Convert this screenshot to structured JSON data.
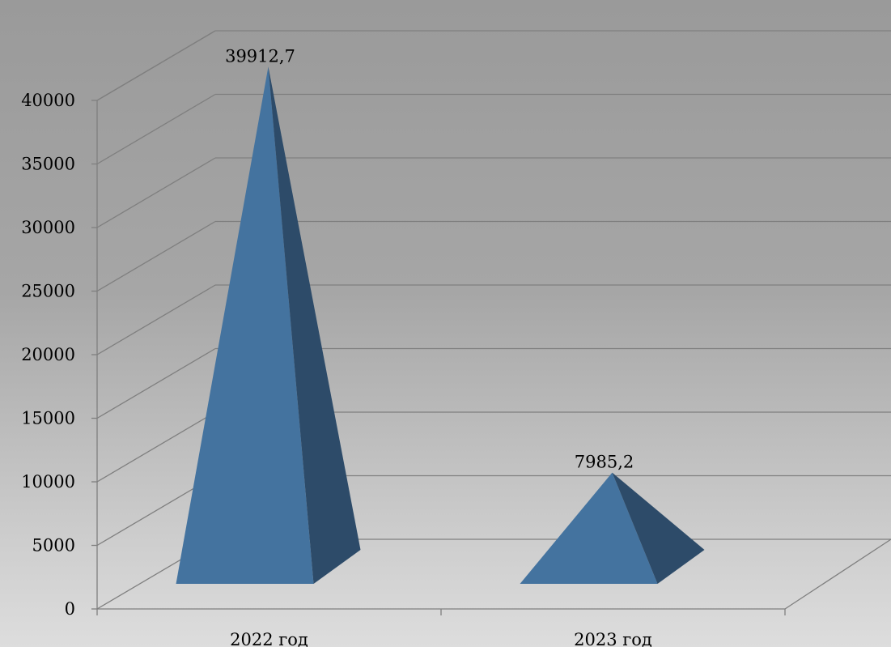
{
  "chart_data": {
    "type": "bar",
    "style": "3d-pyramid",
    "title": "",
    "xlabel": "",
    "ylabel": "",
    "categories": [
      "2022 год",
      "2023 год"
    ],
    "values": [
      39912.7,
      7985.2
    ],
    "data_labels": [
      "39912,7",
      "7985,2"
    ],
    "ylim": [
      0,
      40000
    ],
    "yticks": [
      0,
      5000,
      10000,
      15000,
      20000,
      25000,
      30000,
      35000,
      40000
    ],
    "ytick_labels": [
      "0",
      "5000",
      "10000",
      "15000",
      "20000",
      "25000",
      "30000",
      "35000",
      "40000"
    ],
    "grid": true,
    "legend": "none",
    "colors": {
      "bar_front": "#44739f",
      "bar_side": "#2d4b69",
      "grid": "#7f7f7f"
    }
  }
}
